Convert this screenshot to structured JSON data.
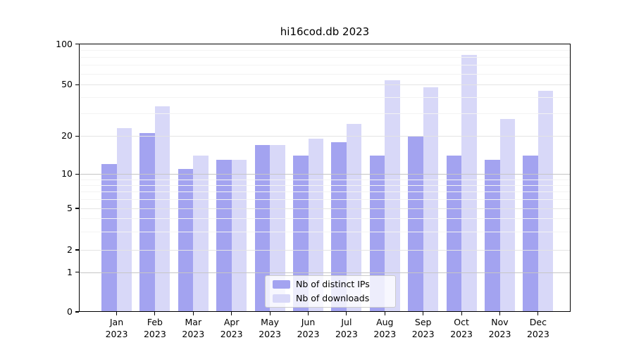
{
  "title": "hi16cod.db 2023",
  "chart_data": {
    "type": "bar",
    "title": "hi16cod.db 2023",
    "categories": [
      "Jan",
      "Feb",
      "Mar",
      "Apr",
      "May",
      "Jun",
      "Jul",
      "Aug",
      "Sep",
      "Oct",
      "Nov",
      "Dec"
    ],
    "year_label": "2023",
    "series": [
      {
        "name": "Nb of distinct IPs",
        "color": "#a3a3f0",
        "values": [
          12,
          21,
          11,
          13,
          17,
          14,
          18,
          14,
          20,
          14,
          13,
          14
        ]
      },
      {
        "name": "Nb of downloads",
        "color": "#d8d8f8",
        "values": [
          23,
          34,
          14,
          13,
          17,
          19,
          25,
          54,
          48,
          83,
          27,
          45
        ]
      }
    ],
    "xlabel": "",
    "ylabel": "",
    "yscale": "log-like",
    "y_ticks": [
      0,
      1,
      2,
      5,
      10,
      20,
      50,
      100
    ],
    "y_minor_ticks": [
      3,
      4,
      6,
      7,
      8,
      9,
      30,
      40,
      60,
      70,
      80,
      90
    ],
    "ylim": [
      0,
      100
    ],
    "grid": true,
    "legend_position": "lower center"
  },
  "colors": {
    "background": "#ffffff",
    "spine": "#000000",
    "major_grid": "#c6c6c6",
    "semi_grid": "#e4e4e4",
    "minor_grid": "#f3f3f3"
  }
}
